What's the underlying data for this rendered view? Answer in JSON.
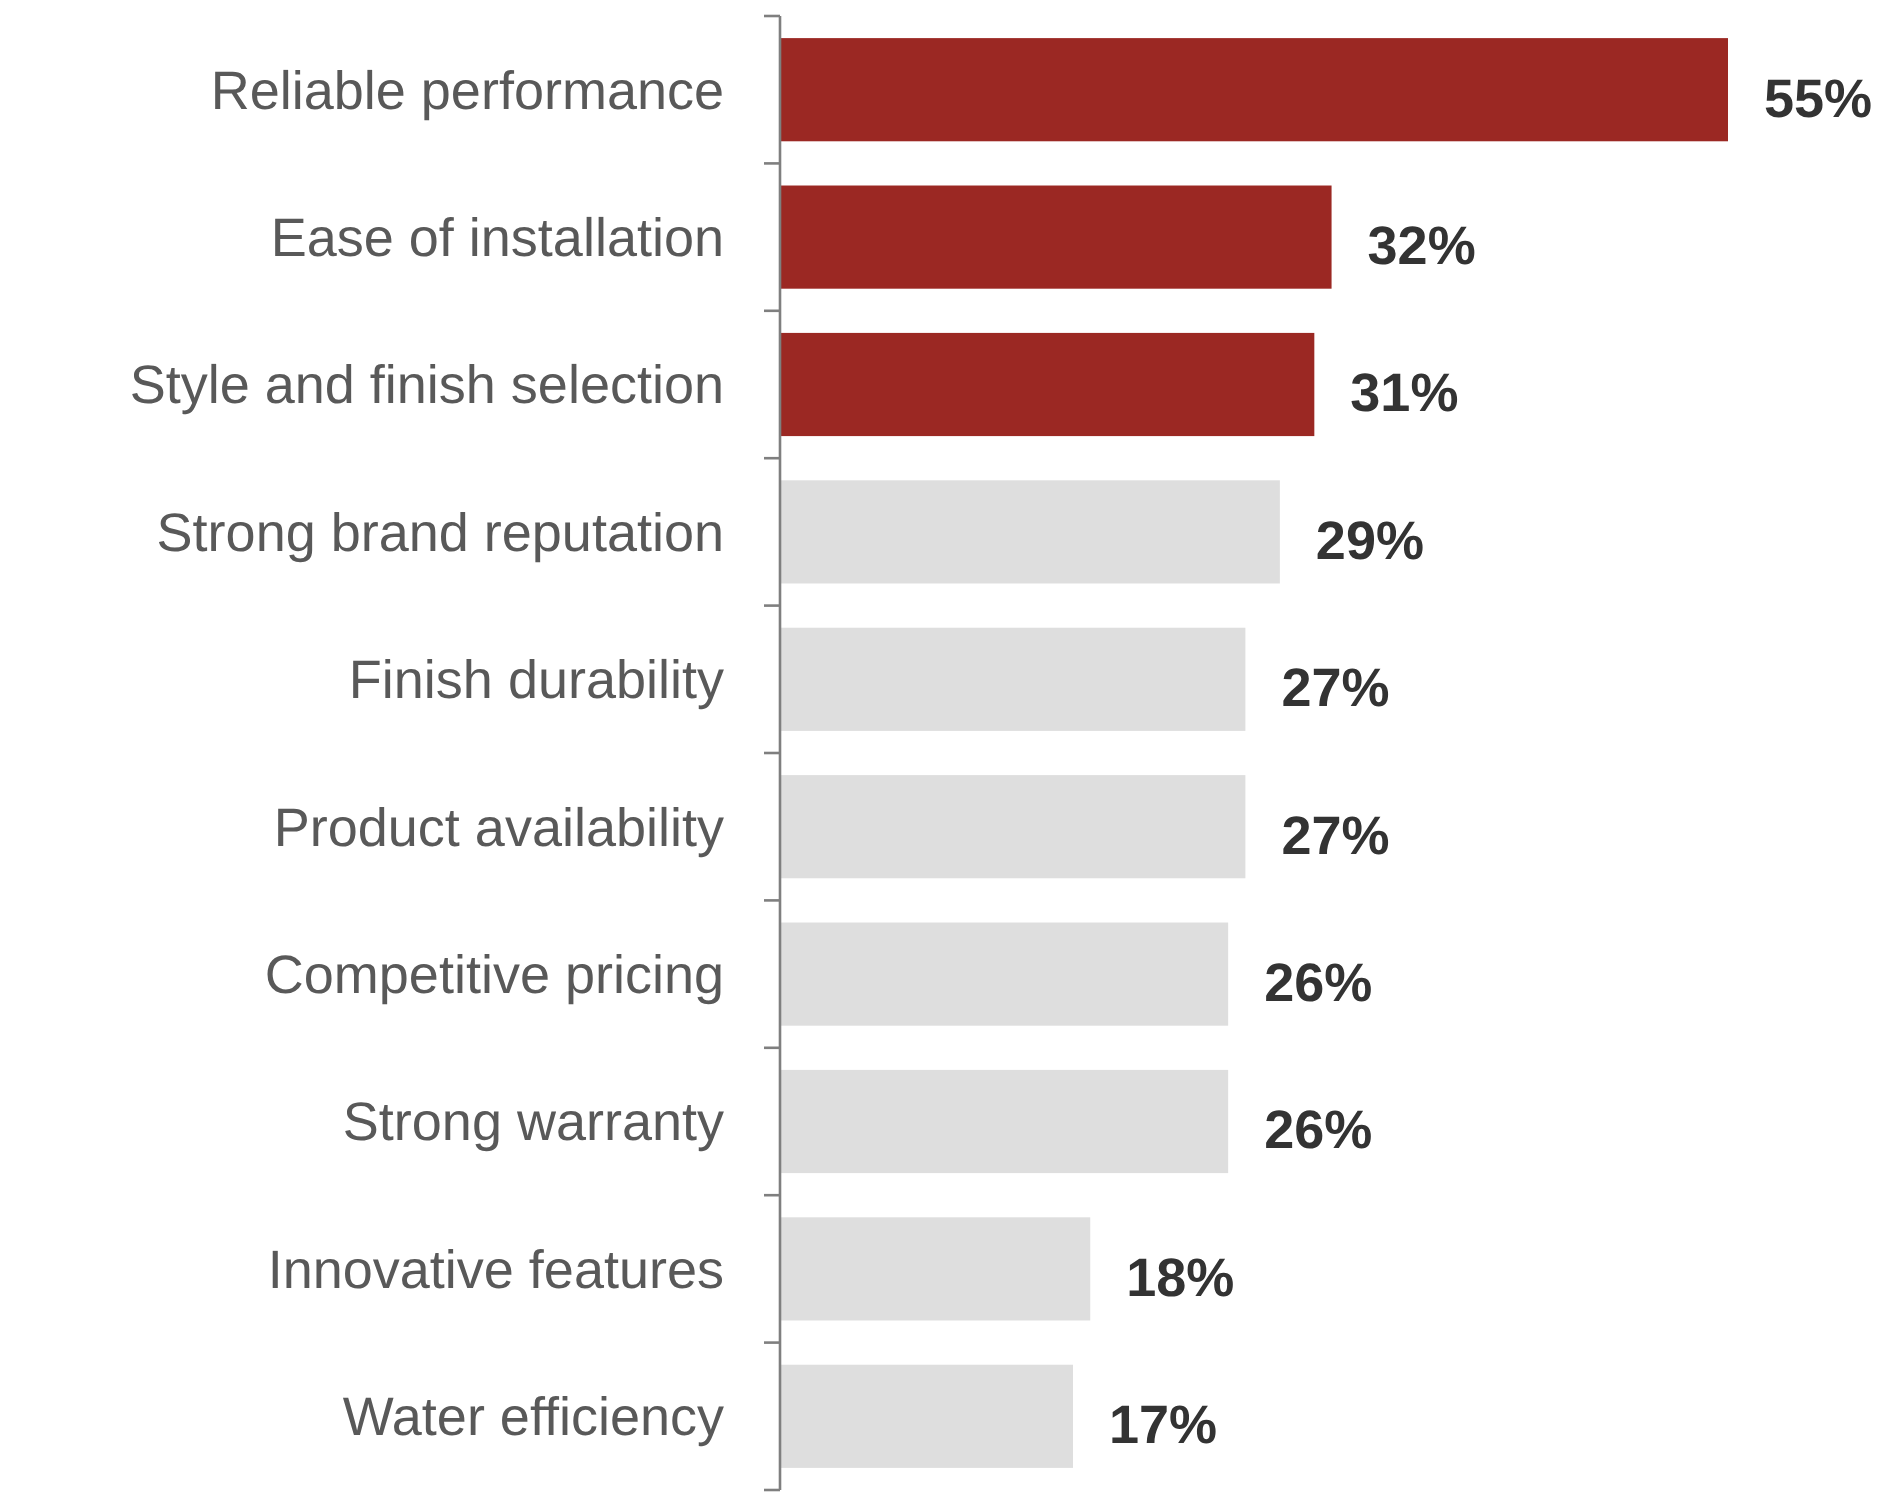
{
  "chart_data": {
    "type": "bar",
    "orientation": "horizontal",
    "categories": [
      "Reliable performance",
      "Ease of installation",
      "Style and finish selection",
      "Strong brand reputation",
      "Finish durability",
      "Product availability",
      "Competitive pricing",
      "Strong warranty",
      "Innovative features",
      "Water efficiency"
    ],
    "values": [
      55,
      32,
      31,
      29,
      27,
      27,
      26,
      26,
      18,
      17
    ],
    "colors": [
      "#9b2823",
      "#9b2823",
      "#9b2823",
      "#dedede",
      "#dedede",
      "#dedede",
      "#dedede",
      "#dedede",
      "#dedede",
      "#dedede"
    ],
    "value_labels": [
      "55%",
      "32%",
      "31%",
      "29%",
      "27%",
      "27%",
      "26%",
      "26%",
      "18%",
      "17%"
    ]
  }
}
